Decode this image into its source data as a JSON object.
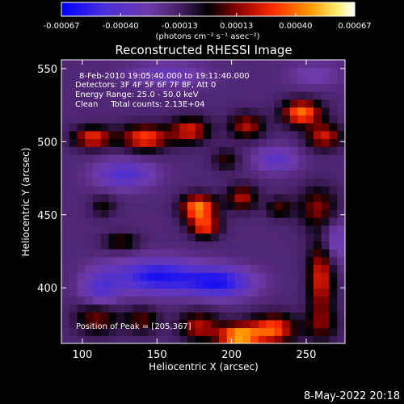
{
  "chart_data": {
    "type": "heatmap",
    "title": "Reconstructed RHESSI Image",
    "xlabel": "Heliocentric X (arcsec)",
    "ylabel": "Heliocentric Y (arcsec)",
    "xlim": [
      86,
      276
    ],
    "ylim": [
      362,
      556
    ],
    "xticks": [
      100,
      150,
      200,
      250
    ],
    "yticks": [
      400,
      450,
      500,
      550
    ],
    "colorbar": {
      "min": -0.00067,
      "max": 0.00067,
      "tick_values": [
        -0.00067,
        -0.0004,
        -0.00013,
        0.00013,
        0.0004,
        0.00067
      ],
      "tick_labels": [
        "-0.00067",
        "-0.00040",
        "-0.00013",
        "0.00013",
        "0.00040",
        "0.00067"
      ],
      "label": "(photons cm⁻² s⁻¹ asec⁻²)"
    },
    "annotations": [
      "8-Feb-2010 19:05:40.000 to 19:11:40.000",
      "Detectors: 3F 4F 5F 6F 7F 8F, Att 0",
      "Energy Range: 25.0 - 50.0 keV",
      "Clean     Total counts: 2.13E+04"
    ],
    "peak_label": "Position of Peak = [205,367]",
    "peak_position": [
      205,
      367
    ],
    "colors": {
      "scale": [
        "#0000ff",
        "#5a2cc8",
        "#7a3fb2",
        "#5e2a90",
        "#000000",
        "#a00000",
        "#ff3300",
        "#ff9900",
        "#ffff80",
        "#ffffff"
      ]
    },
    "blobs": [
      {
        "x": 205,
        "y": 367,
        "amp": 0.00068,
        "sx": 10,
        "sy": 6
      },
      {
        "x": 228,
        "y": 372,
        "amp": 0.00052,
        "sx": 10,
        "sy": 7
      },
      {
        "x": 178,
        "y": 374,
        "amp": 0.00036,
        "sx": 9,
        "sy": 7
      },
      {
        "x": 110,
        "y": 380,
        "amp": 0.00032,
        "sx": 10,
        "sy": 8
      },
      {
        "x": 140,
        "y": 378,
        "amp": 0.00026,
        "sx": 8,
        "sy": 6
      },
      {
        "x": 260,
        "y": 375,
        "amp": 0.00022,
        "sx": 8,
        "sy": 8
      },
      {
        "x": 260,
        "y": 408,
        "amp": 0.00044,
        "sx": 6,
        "sy": 18
      },
      {
        "x": 178,
        "y": 455,
        "amp": 0.00062,
        "sx": 8,
        "sy": 6
      },
      {
        "x": 182,
        "y": 442,
        "amp": 0.00046,
        "sx": 7,
        "sy": 5
      },
      {
        "x": 207,
        "y": 462,
        "amp": 0.00036,
        "sx": 7,
        "sy": 6
      },
      {
        "x": 258,
        "y": 455,
        "amp": 0.0003,
        "sx": 9,
        "sy": 10
      },
      {
        "x": 232,
        "y": 455,
        "amp": 0.00024,
        "sx": 6,
        "sy": 5
      },
      {
        "x": 126,
        "y": 432,
        "amp": 0.00025,
        "sx": 8,
        "sy": 4
      },
      {
        "x": 114,
        "y": 456,
        "amp": 0.00018,
        "sx": 6,
        "sy": 5
      },
      {
        "x": 142,
        "y": 503,
        "amp": 0.0005,
        "sx": 11,
        "sy": 6
      },
      {
        "x": 172,
        "y": 508,
        "amp": 0.00042,
        "sx": 9,
        "sy": 6
      },
      {
        "x": 107,
        "y": 503,
        "amp": 0.00046,
        "sx": 9,
        "sy": 5
      },
      {
        "x": 210,
        "y": 511,
        "amp": 0.00036,
        "sx": 8,
        "sy": 6
      },
      {
        "x": 247,
        "y": 520,
        "amp": 0.00058,
        "sx": 9,
        "sy": 6
      },
      {
        "x": 262,
        "y": 504,
        "amp": 0.0004,
        "sx": 8,
        "sy": 6
      },
      {
        "x": 196,
        "y": 488,
        "amp": 0.00022,
        "sx": 6,
        "sy": 5
      },
      {
        "x": 150,
        "y": 408,
        "amp": -0.00042,
        "sx": 20,
        "sy": 8
      },
      {
        "x": 192,
        "y": 404,
        "amp": -0.0004,
        "sx": 16,
        "sy": 7
      },
      {
        "x": 112,
        "y": 398,
        "amp": -0.00025,
        "sx": 9,
        "sy": 10
      },
      {
        "x": 268,
        "y": 432,
        "amp": -0.0002,
        "sx": 7,
        "sy": 12
      },
      {
        "x": 128,
        "y": 478,
        "amp": -0.00026,
        "sx": 14,
        "sy": 7
      },
      {
        "x": 230,
        "y": 488,
        "amp": -0.00022,
        "sx": 10,
        "sy": 6
      },
      {
        "x": 158,
        "y": 546,
        "amp": -0.00016,
        "sx": 18,
        "sy": 6
      },
      {
        "x": 255,
        "y": 546,
        "amp": -0.00012,
        "sx": 12,
        "sy": 6
      }
    ]
  },
  "footer": {
    "timestamp": "8-May-2022 20:18"
  }
}
